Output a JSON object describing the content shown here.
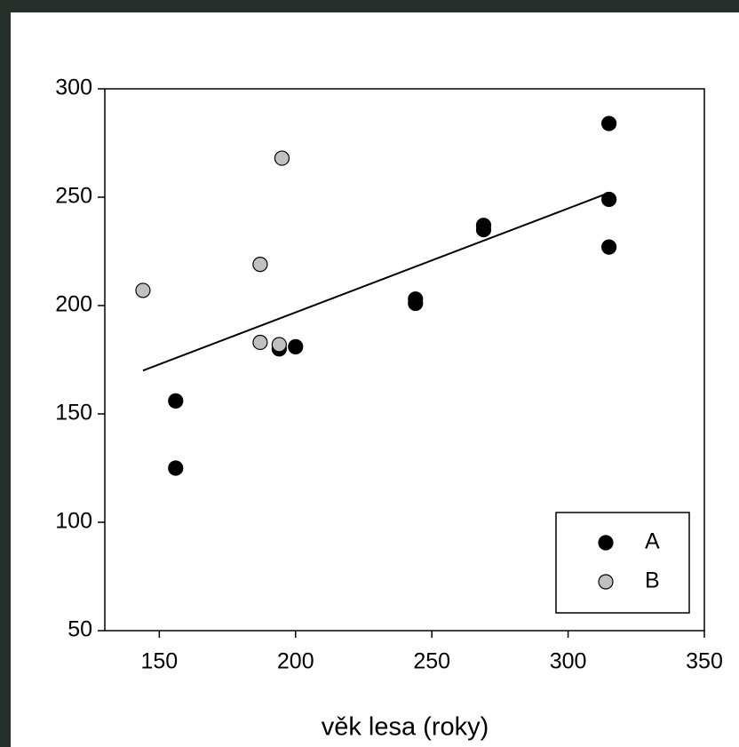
{
  "chart_data": {
    "type": "scatter",
    "x_label": "věk lesa (roky)",
    "xlim": [
      130,
      350
    ],
    "xticks": [
      150,
      200,
      250,
      300,
      350
    ],
    "ylim": [
      50,
      300
    ],
    "yticks": [
      50,
      100,
      150,
      200,
      250,
      300
    ],
    "legend": "bottom-right",
    "series": [
      {
        "name": "A",
        "color": "#000000",
        "x": [
          156,
          156,
          194,
          200,
          244,
          244,
          269,
          269,
          315,
          315,
          315
        ],
        "values": [
          156,
          125,
          180,
          181,
          203,
          201,
          237,
          235,
          284,
          249,
          227
        ]
      },
      {
        "name": "B",
        "color": "#c0c0c0",
        "x": [
          144,
          187,
          187,
          194,
          195
        ],
        "values": [
          207,
          219,
          183,
          182,
          268
        ]
      }
    ],
    "trendline": {
      "x": [
        144,
        315
      ],
      "values": [
        170,
        252
      ],
      "color": "#000000"
    }
  }
}
